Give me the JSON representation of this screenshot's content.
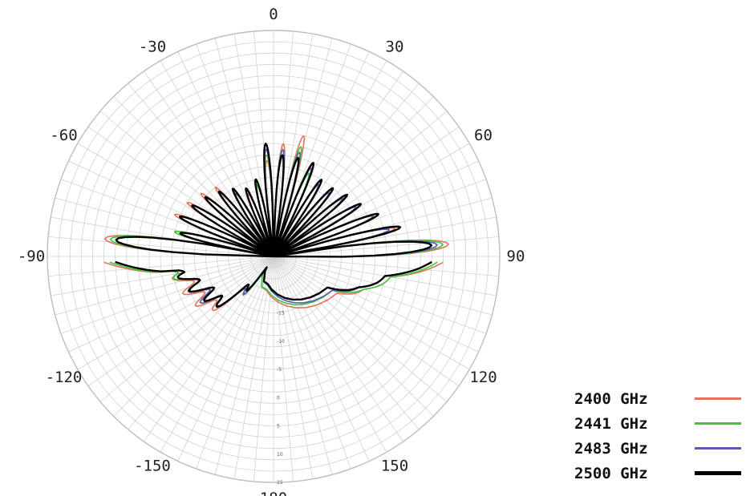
{
  "chart_data": {
    "type": "polar",
    "angle_labels": [
      "0",
      "30",
      "60",
      "90",
      "120",
      "150",
      "180",
      "-150",
      "-120",
      "-90",
      "-60",
      "-30"
    ],
    "angle_ticks": [
      0,
      30,
      60,
      90,
      120,
      150,
      180,
      -150,
      -120,
      -90,
      -60,
      -30
    ],
    "radial_tick_labels": [
      "-15",
      "-10",
      "-5",
      "0",
      "5",
      "10",
      "15"
    ],
    "radial_range": [
      -25,
      15
    ],
    "grid": true,
    "legend_position": "bottom-right",
    "series": [
      {
        "name": "2400 GHz",
        "color": "#e0755a",
        "lobe_angles": [
          -84,
          -76,
          -67,
          -58,
          -49,
          -40,
          -31,
          -22,
          -13,
          -4,
          5,
          14,
          23,
          32,
          41,
          50,
          59,
          68,
          77,
          86
        ],
        "lobe_levels": [
          5,
          -7,
          -6,
          -7,
          -8,
          -9,
          -11,
          -13,
          -12,
          -8,
          -5,
          -3,
          -9,
          -10,
          -10,
          -9,
          -7,
          -6,
          -3,
          6
        ],
        "back_angles": [
          -92,
          -100,
          -110,
          -120,
          -130,
          -140,
          -150,
          120,
          110,
          100,
          92
        ],
        "back_levels": [
          5,
          -8,
          -9,
          -10,
          -11,
          -17,
          -21,
          -12,
          -8,
          -4,
          5
        ]
      },
      {
        "name": "2441 GHz",
        "color": "#3fc63f",
        "lobe_angles": [
          -84,
          -76,
          -67,
          -58,
          -49,
          -40,
          -31,
          -22,
          -13,
          -4,
          5,
          14,
          23,
          32,
          41,
          50,
          59,
          68,
          77,
          86
        ],
        "lobe_levels": [
          4,
          -7,
          -7,
          -8,
          -9,
          -10,
          -11,
          -12,
          -12,
          -7,
          -6,
          -5,
          -9,
          -10,
          -10,
          -9,
          -8,
          -6,
          -4,
          5
        ],
        "back_angles": [
          -92,
          -100,
          -110,
          -120,
          -130,
          -140,
          -150,
          120,
          110,
          100,
          92
        ],
        "back_levels": [
          4,
          -8,
          -10,
          -11,
          -12,
          -17,
          -21,
          -13,
          -8,
          -4,
          4
        ]
      },
      {
        "name": "2483 GHz",
        "color": "#5a5ab4",
        "lobe_angles": [
          -84,
          -76,
          -67,
          -58,
          -49,
          -40,
          -31,
          -22,
          -13,
          -4,
          5,
          14,
          23,
          32,
          41,
          50,
          59,
          68,
          77,
          86
        ],
        "lobe_levels": [
          3,
          -8,
          -7,
          -8,
          -9,
          -10,
          -12,
          -12,
          -11,
          -6,
          -6,
          -6,
          -8,
          -10,
          -10,
          -9,
          -8,
          -6,
          -4,
          4
        ],
        "back_angles": [
          -92,
          -100,
          -110,
          -120,
          -130,
          -140,
          -150,
          120,
          110,
          100,
          92
        ],
        "back_levels": [
          3,
          -9,
          -10,
          -11,
          -12,
          -17,
          -22,
          -13,
          -9,
          -5,
          3
        ]
      },
      {
        "name": "2500 GHz",
        "color": "#000000",
        "lobe_angles": [
          -84,
          -76,
          -67,
          -58,
          -49,
          -40,
          -31,
          -22,
          -13,
          -4,
          5,
          14,
          23,
          32,
          41,
          50,
          59,
          68,
          77,
          86
        ],
        "lobe_levels": [
          3,
          -8,
          -7,
          -8,
          -9,
          -10,
          -11,
          -12,
          -11,
          -5,
          -7,
          -7,
          -7,
          -9,
          -9,
          -8,
          -7,
          -5,
          -2,
          3
        ],
        "back_angles": [
          -92,
          -100,
          -110,
          -120,
          -130,
          -140,
          -150,
          120,
          110,
          100,
          92
        ],
        "back_levels": [
          3,
          -9,
          -10,
          -12,
          -12,
          -18,
          -22,
          -14,
          -9,
          -5,
          3
        ]
      }
    ]
  },
  "legend": [
    {
      "label": "2400 GHz",
      "color": "#e0755a"
    },
    {
      "label": "2441 GHz",
      "color": "#3fc63f"
    },
    {
      "label": "2483 GHz",
      "color": "#5a5ab4"
    },
    {
      "label": "2500 GHz",
      "color": "#000000"
    }
  ]
}
